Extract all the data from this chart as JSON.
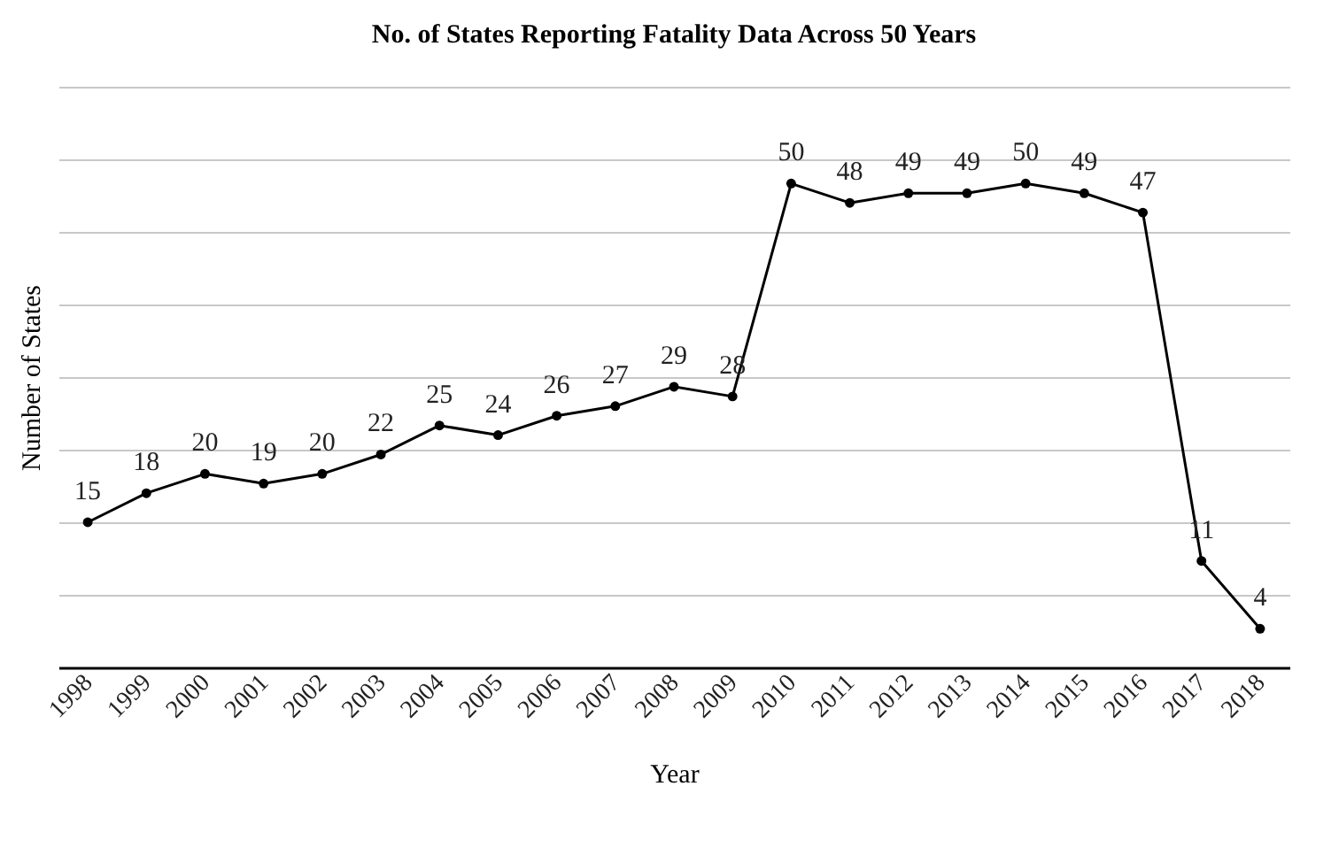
{
  "chart_data": {
    "type": "line",
    "title": "No. of States Reporting Fatality Data Across 50 Years",
    "xlabel": "Year",
    "ylabel": "Number of States",
    "categories": [
      "1998",
      "1999",
      "2000",
      "2001",
      "2002",
      "2003",
      "2004",
      "2005",
      "2006",
      "2007",
      "2008",
      "2009",
      "2010",
      "2011",
      "2012",
      "2013",
      "2014",
      "2015",
      "2016",
      "2017",
      "2018"
    ],
    "values": [
      15,
      18,
      20,
      19,
      20,
      22,
      25,
      24,
      26,
      27,
      29,
      28,
      50,
      48,
      49,
      49,
      50,
      49,
      47,
      11,
      4
    ],
    "color": "#000000",
    "ylim": [
      0,
      60
    ],
    "yticks": [
      {
        "value": 0,
        "label": null
      },
      {
        "value": 7.5,
        "label": null
      },
      {
        "value": 15,
        "label": null
      },
      {
        "value": 22.5,
        "label": null
      },
      {
        "value": 30,
        "label": null
      },
      {
        "value": 37.5,
        "label": null
      },
      {
        "value": 45,
        "label": null
      },
      {
        "value": 52.5,
        "label": null
      },
      {
        "value": 60,
        "label": null
      }
    ],
    "tick_labels": "x",
    "grid": "y",
    "marker": "circle",
    "line_style": "solid",
    "data_labels": true
  }
}
